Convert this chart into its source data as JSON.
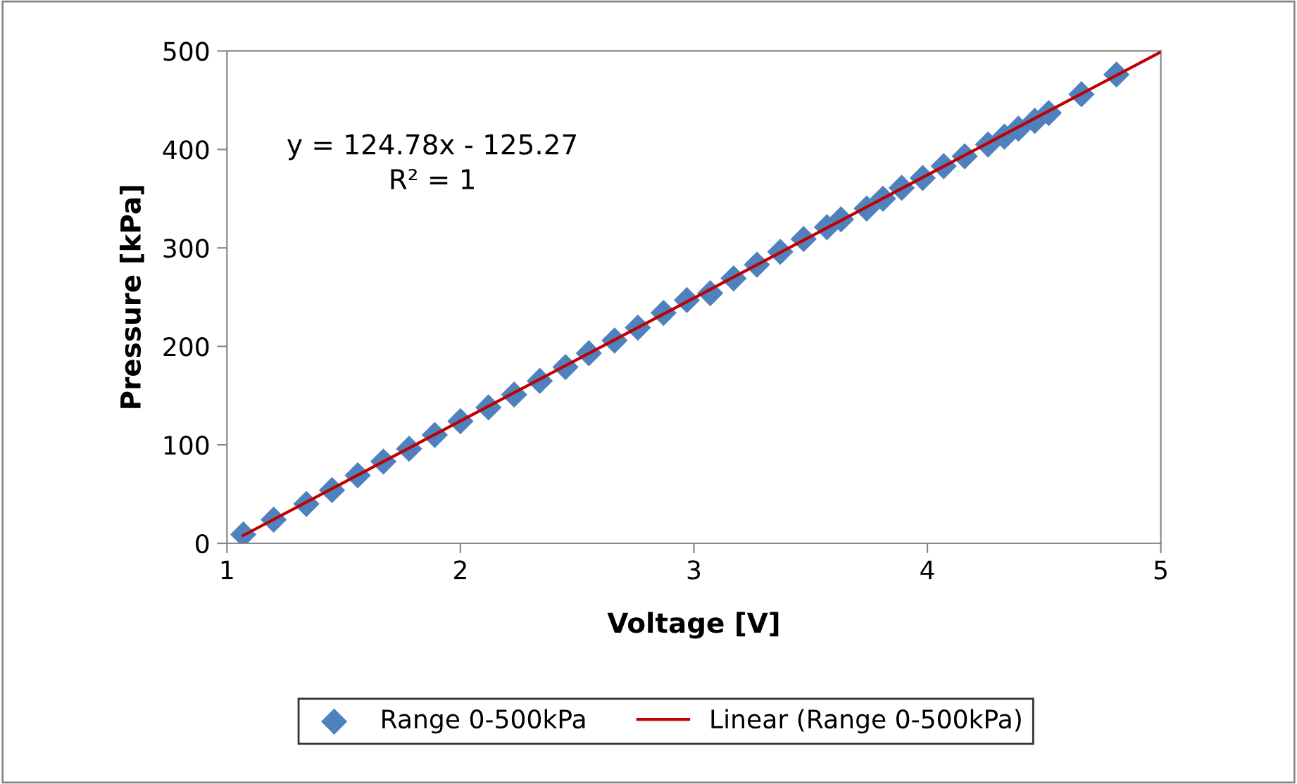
{
  "chart_data": {
    "type": "scatter",
    "xlabel": "Voltage [V]",
    "ylabel": "Pressure [kPa]",
    "xlim": [
      1,
      5
    ],
    "xticks": [
      1,
      2,
      3,
      4,
      5
    ],
    "ylim": [
      0,
      500
    ],
    "yticks": [
      0,
      100,
      200,
      300,
      400,
      500
    ],
    "grid": false,
    "legend": "bottom",
    "annotations": [
      "y = 124.78x - 125.27\nR² = 1"
    ],
    "series": [
      {
        "name": "Range 0-500kPa",
        "color": "#4f81bd",
        "marker": "diamond",
        "x": [
          1.07,
          1.2,
          1.34,
          1.45,
          1.56,
          1.67,
          1.78,
          1.89,
          2.0,
          2.12,
          2.23,
          2.34,
          2.45,
          2.55,
          2.66,
          2.76,
          2.87,
          2.97,
          3.07,
          3.17,
          3.27,
          3.37,
          3.47,
          3.57,
          3.63,
          3.74,
          3.81,
          3.89,
          3.98,
          4.07,
          4.16,
          4.26,
          4.33,
          4.39,
          4.46,
          4.52,
          4.66,
          4.81
        ],
        "values": [
          9,
          24,
          40,
          54,
          69,
          83,
          96,
          110,
          124,
          138,
          151,
          165,
          179,
          193,
          206,
          219,
          234,
          247,
          254,
          269,
          283,
          296,
          309,
          321,
          329,
          340,
          350,
          361,
          371,
          383,
          393,
          405,
          413,
          421,
          429,
          437,
          456,
          476
        ]
      },
      {
        "name": "Linear (Range 0-500kPa)",
        "color": "#c00000",
        "type": "line",
        "line_style": "solid",
        "x": [
          1.07,
          5
        ],
        "values": [
          8,
          499
        ]
      }
    ]
  }
}
